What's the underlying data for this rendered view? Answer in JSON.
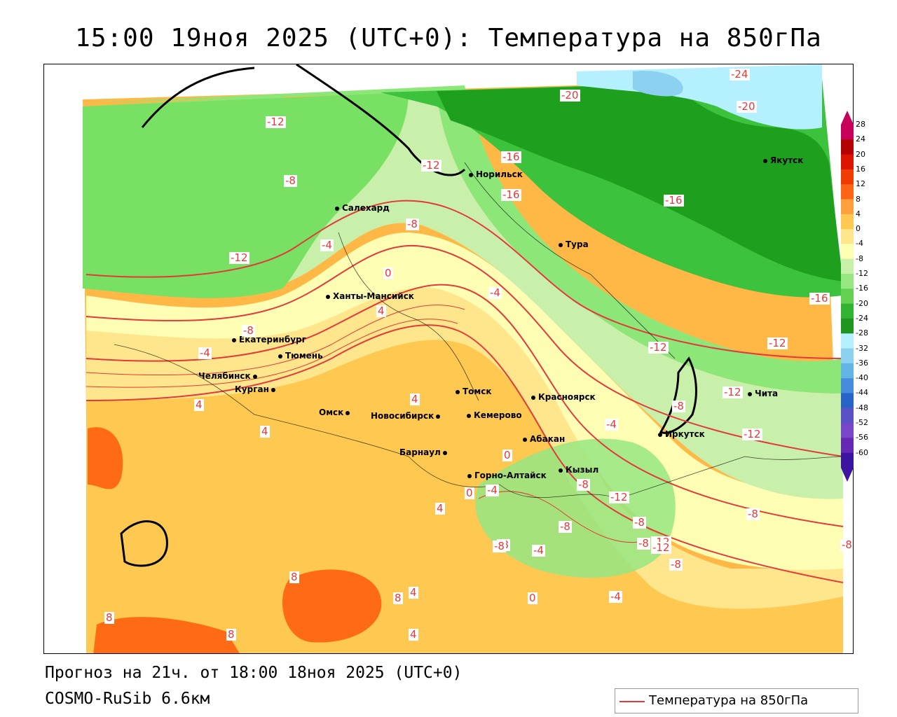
{
  "title": "15:00 19ноя 2025 (UTC+0): Температура на 850гПа",
  "forecast_info": "Прогноз на 21ч. от 18:00 18ноя 2025 (UTC+0)",
  "model": "COSMO-RuSib 6.6км",
  "legend": {
    "label": "Температура на 850гПа",
    "line_color": "#e23a3a"
  },
  "colorbar": {
    "ticks": [
      "28",
      "24",
      "20",
      "16",
      "12",
      "8",
      "4",
      "0",
      "-4",
      "-8",
      "-12",
      "-16",
      "-20",
      "-24",
      "-28",
      "-32",
      "-36",
      "-40",
      "-44",
      "-48",
      "-52",
      "-56",
      "-60"
    ],
    "colors": [
      "#c8005a",
      "#b40000",
      "#dc1400",
      "#f03c00",
      "#ff6414",
      "#ffa03c",
      "#ffc850",
      "#ffe68c",
      "#ffffb4",
      "#c8f0aa",
      "#96e682",
      "#64d250",
      "#32b432",
      "#1e961e",
      "#b4f0ff",
      "#8cd2f0",
      "#64b4e6",
      "#468cdc",
      "#2864c8",
      "#5a50c8",
      "#7846c8",
      "#6428b4",
      "#3c14a0"
    ]
  },
  "cities": [
    {
      "name": "Норильск"
    },
    {
      "name": "Якутск"
    },
    {
      "name": "Салехард"
    },
    {
      "name": "Тура"
    },
    {
      "name": "Ханты-Мансийск"
    },
    {
      "name": "Екатеринбург"
    },
    {
      "name": "Тюмень"
    },
    {
      "name": "Челябинск"
    },
    {
      "name": "Курган"
    },
    {
      "name": "Омск"
    },
    {
      "name": "Новосибирск"
    },
    {
      "name": "Томск"
    },
    {
      "name": "Кемерово"
    },
    {
      "name": "Красноярск"
    },
    {
      "name": "Барнаул"
    },
    {
      "name": "Абакан"
    },
    {
      "name": "Иркутск"
    },
    {
      "name": "Чита"
    },
    {
      "name": "Кызыл"
    },
    {
      "name": "Горно-Алтайск"
    }
  ],
  "contour_labels": [
    "-24",
    "-20",
    "-20",
    "-12",
    "-12",
    "-16",
    "-16",
    "-8",
    "-16",
    "-12",
    "-8",
    "-4",
    "-4",
    "0",
    "4",
    "-16",
    "-8",
    "-4",
    "-12",
    "-12",
    "-12",
    "-8",
    "-4",
    "-4",
    "4",
    "4",
    "4",
    "0",
    "-8",
    "-12",
    "-8",
    "-12",
    "-8",
    "-12",
    "-8",
    "-8",
    "-4",
    "-8",
    "0",
    "-4",
    "-8",
    "-8",
    "4",
    "8",
    "8",
    "8",
    "4",
    "4",
    "8",
    "0",
    "-8",
    "0",
    "-12"
  ]
}
